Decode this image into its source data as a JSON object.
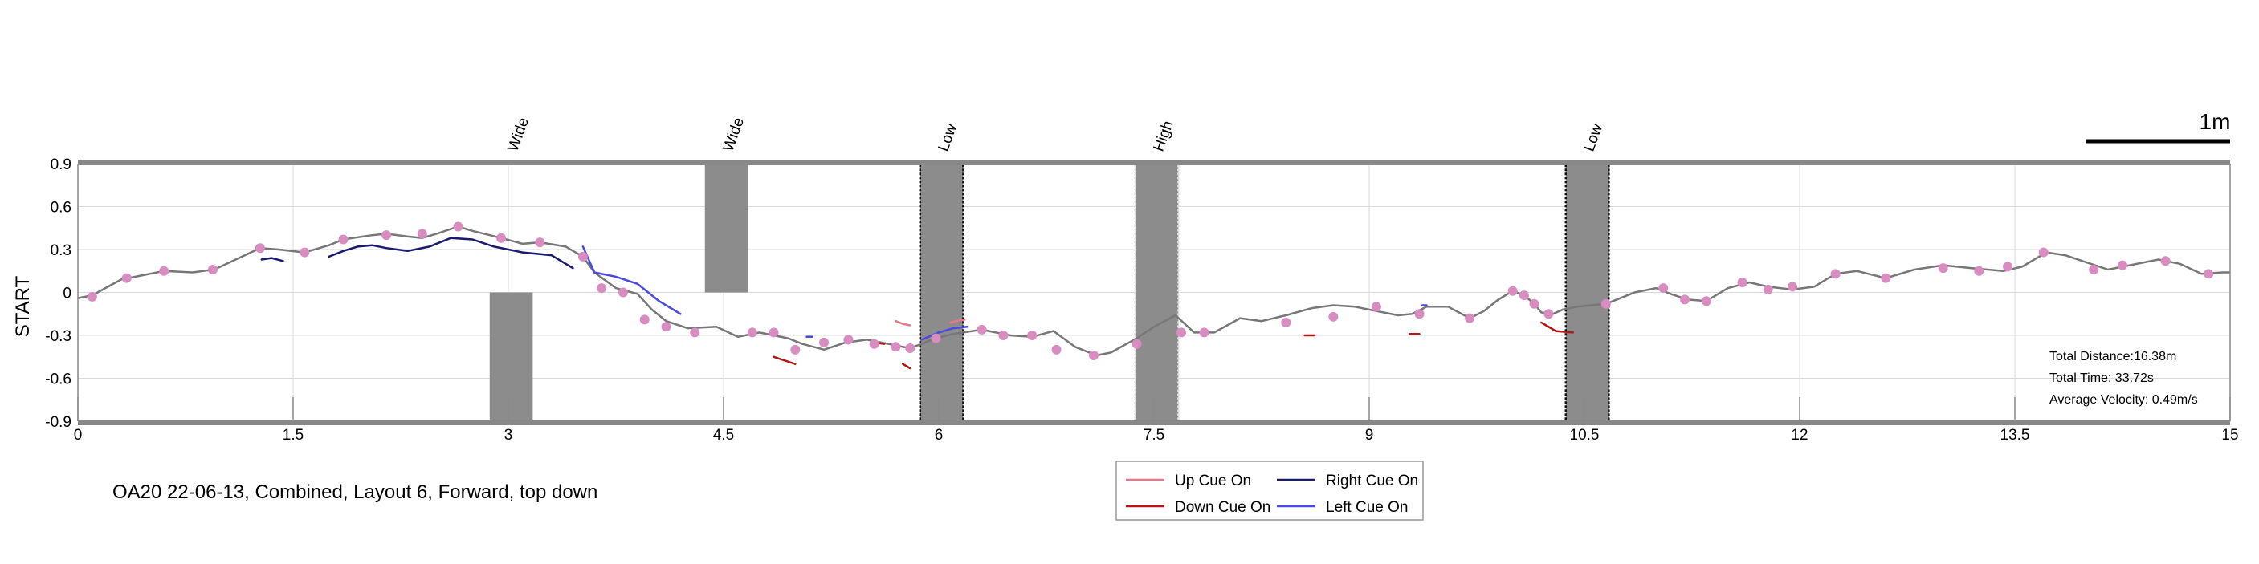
{
  "chart_data": {
    "type": "line",
    "ylabel": "START",
    "xlim": [
      0,
      15
    ],
    "ylim": [
      -0.9,
      0.9
    ],
    "x_ticks": [
      "0",
      "1.5",
      "3",
      "4.5",
      "6",
      "7.5",
      "9",
      "10.5",
      "12",
      "13.5",
      "15"
    ],
    "y_ticks": [
      "0.9",
      "0.6",
      "0.3",
      "0",
      "-0.3",
      "-0.6",
      "-0.9"
    ],
    "grid": true,
    "scale_bar_label": "1m",
    "caption": "OA20 22-06-13, Combined, Layout 6, Forward, top down",
    "stats": {
      "total_distance": "Total Distance:16.38m",
      "total_time": "Total Time: 33.72s",
      "average_velocity": "Average Velocity: 0.49m/s"
    },
    "obstacles": [
      {
        "label": "Wide",
        "type": "wide",
        "x_start": 2.87,
        "x_end": 3.17,
        "y_start": -0.9,
        "y_end": 0.0
      },
      {
        "label": "Wide",
        "type": "wide",
        "x_start": 4.37,
        "x_end": 4.67,
        "y_start": 0.0,
        "y_end": 0.9
      },
      {
        "label": "Low",
        "type": "low",
        "x_start": 5.87,
        "x_end": 6.17,
        "y_start": -0.9,
        "y_end": 0.9
      },
      {
        "label": "High",
        "type": "high",
        "x_start": 7.37,
        "x_end": 7.67,
        "y_start": -0.9,
        "y_end": 0.9
      },
      {
        "label": "Low",
        "type": "low",
        "x_start": 10.37,
        "x_end": 10.67,
        "y_start": -0.9,
        "y_end": 0.9
      }
    ],
    "series": [
      {
        "name": "path",
        "color": "#777777",
        "x": [
          0,
          0.1,
          0.3,
          0.45,
          0.6,
          0.8,
          0.95,
          1.1,
          1.27,
          1.4,
          1.58,
          1.75,
          1.85,
          2.05,
          2.15,
          2.3,
          2.4,
          2.5,
          2.65,
          2.75,
          2.95,
          3.1,
          3.22,
          3.4,
          3.52,
          3.6,
          3.75,
          3.9,
          4.0,
          4.1,
          4.25,
          4.45,
          4.6,
          4.75,
          4.95,
          5.05,
          5.2,
          5.35,
          5.5,
          5.65,
          5.8,
          5.98,
          6.1,
          6.3,
          6.5,
          6.65,
          6.8,
          6.95,
          7.1,
          7.2,
          7.38,
          7.5,
          7.65,
          7.78,
          7.92,
          8.1,
          8.25,
          8.42,
          8.6,
          8.75,
          8.9,
          9.05,
          9.2,
          9.3,
          9.4,
          9.55,
          9.7,
          9.8,
          9.9,
          10.0,
          10.08,
          10.15,
          10.2,
          10.28,
          10.35,
          10.45,
          10.65,
          10.85,
          11.0,
          11.1,
          11.22,
          11.35,
          11.5,
          11.65,
          11.78,
          11.95,
          12.1,
          12.25,
          12.4,
          12.6,
          12.8,
          13.0,
          13.2,
          13.42,
          13.55,
          13.72,
          13.85,
          14.0,
          14.15,
          14.3,
          14.5,
          14.65,
          14.8,
          14.95,
          15.0
        ],
        "y": [
          -0.04,
          -0.02,
          0.09,
          0.12,
          0.15,
          0.14,
          0.16,
          0.23,
          0.31,
          0.3,
          0.28,
          0.33,
          0.37,
          0.4,
          0.41,
          0.39,
          0.38,
          0.41,
          0.46,
          0.43,
          0.38,
          0.34,
          0.35,
          0.32,
          0.25,
          0.14,
          0.03,
          -0.01,
          -0.12,
          -0.2,
          -0.25,
          -0.24,
          -0.31,
          -0.28,
          -0.32,
          -0.36,
          -0.4,
          -0.35,
          -0.33,
          -0.36,
          -0.39,
          -0.32,
          -0.29,
          -0.26,
          -0.3,
          -0.31,
          -0.27,
          -0.38,
          -0.44,
          -0.42,
          -0.32,
          -0.24,
          -0.16,
          -0.28,
          -0.28,
          -0.18,
          -0.2,
          -0.16,
          -0.11,
          -0.09,
          -0.1,
          -0.13,
          -0.16,
          -0.15,
          -0.1,
          -0.1,
          -0.18,
          -0.13,
          -0.05,
          0.01,
          -0.02,
          -0.08,
          -0.14,
          -0.15,
          -0.12,
          -0.1,
          -0.08,
          0.0,
          0.03,
          -0.01,
          -0.05,
          -0.06,
          0.03,
          0.07,
          0.04,
          0.02,
          0.04,
          0.13,
          0.15,
          0.1,
          0.16,
          0.19,
          0.17,
          0.15,
          0.18,
          0.28,
          0.26,
          0.21,
          0.16,
          0.19,
          0.23,
          0.2,
          0.13,
          0.14,
          0.14
        ]
      },
      {
        "name": "markers",
        "color": "#d98cc0",
        "x": [
          0.1,
          0.34,
          0.6,
          0.94,
          1.27,
          1.58,
          1.85,
          2.15,
          2.4,
          2.65,
          2.95,
          3.22,
          3.52,
          3.65,
          3.8,
          3.95,
          4.1,
          4.3,
          4.7,
          4.85,
          5.0,
          5.2,
          5.37,
          5.55,
          5.7,
          5.8,
          5.98,
          6.3,
          6.45,
          6.65,
          6.82,
          7.08,
          7.38,
          7.69,
          7.85,
          8.42,
          8.75,
          9.05,
          9.35,
          9.7,
          10.0,
          10.08,
          10.15,
          10.25,
          10.65,
          11.05,
          11.2,
          11.35,
          11.6,
          11.78,
          11.95,
          12.25,
          12.6,
          13.0,
          13.25,
          13.45,
          13.7,
          14.05,
          14.25,
          14.55,
          14.85
        ],
        "y": [
          -0.03,
          0.1,
          0.15,
          0.16,
          0.31,
          0.28,
          0.37,
          0.4,
          0.41,
          0.46,
          0.38,
          0.35,
          0.25,
          0.03,
          0.0,
          -0.19,
          -0.24,
          -0.28,
          -0.28,
          -0.28,
          -0.4,
          -0.35,
          -0.33,
          -0.36,
          -0.38,
          -0.39,
          -0.32,
          -0.26,
          -0.3,
          -0.3,
          -0.4,
          -0.44,
          -0.36,
          -0.28,
          -0.28,
          -0.21,
          -0.17,
          -0.1,
          -0.15,
          -0.18,
          0.01,
          -0.02,
          -0.08,
          -0.15,
          -0.08,
          0.03,
          -0.05,
          -0.06,
          0.07,
          0.02,
          0.04,
          0.13,
          0.1,
          0.17,
          0.15,
          0.18,
          0.28,
          0.16,
          0.19,
          0.22,
          0.13
        ]
      },
      {
        "name": "Up Cue On",
        "color": "#e8788a",
        "segments": [
          {
            "x": [
              5.7,
              5.75,
              5.8
            ],
            "y": [
              -0.2,
              -0.22,
              -0.23
            ]
          },
          {
            "x": [
              6.08,
              6.12,
              6.18
            ],
            "y": [
              -0.21,
              -0.2,
              -0.19
            ]
          }
        ]
      },
      {
        "name": "Down Cue On",
        "color": "#b01818",
        "segments": [
          {
            "x": [
              4.85,
              5.0
            ],
            "y": [
              -0.45,
              -0.5
            ]
          },
          {
            "x": [
              5.55,
              5.62
            ],
            "y": [
              -0.35,
              -0.36
            ]
          },
          {
            "x": [
              5.75,
              5.8
            ],
            "y": [
              -0.5,
              -0.53
            ]
          },
          {
            "x": [
              8.55,
              8.62
            ],
            "y": [
              -0.3,
              -0.3
            ]
          },
          {
            "x": [
              9.28,
              9.35
            ],
            "y": [
              -0.29,
              -0.29
            ]
          },
          {
            "x": [
              10.2,
              10.3,
              10.42
            ],
            "y": [
              -0.21,
              -0.27,
              -0.28
            ]
          }
        ]
      },
      {
        "name": "Right Cue On",
        "color": "#1a1a6e",
        "segments": [
          {
            "x": [
              1.28,
              1.35,
              1.43
            ],
            "y": [
              0.23,
              0.24,
              0.22
            ]
          },
          {
            "x": [
              1.75,
              1.85,
              1.95,
              2.05,
              2.15,
              2.3,
              2.45,
              2.6,
              2.75,
              2.9,
              3.1,
              3.3,
              3.45
            ],
            "y": [
              0.25,
              0.29,
              0.32,
              0.33,
              0.31,
              0.29,
              0.32,
              0.38,
              0.37,
              0.32,
              0.28,
              0.26,
              0.17
            ]
          }
        ]
      },
      {
        "name": "Left Cue On",
        "color": "#4a4adf",
        "segments": [
          {
            "x": [
              3.52,
              3.6,
              3.75,
              3.9,
              4.05,
              4.2
            ],
            "y": [
              0.32,
              0.14,
              0.11,
              0.06,
              -0.06,
              -0.15
            ]
          },
          {
            "x": [
              5.08,
              5.12
            ],
            "y": [
              -0.31,
              -0.31
            ]
          },
          {
            "x": [
              5.88,
              6.0,
              6.1,
              6.2
            ],
            "y": [
              -0.33,
              -0.28,
              -0.25,
              -0.24
            ]
          },
          {
            "x": [
              9.37,
              9.4
            ],
            "y": [
              -0.09,
              -0.09
            ]
          }
        ]
      }
    ],
    "legend": {
      "position": "bottom-center",
      "entries": [
        "Up Cue On",
        "Right Cue On",
        "Down Cue On",
        "Left Cue On"
      ]
    }
  }
}
